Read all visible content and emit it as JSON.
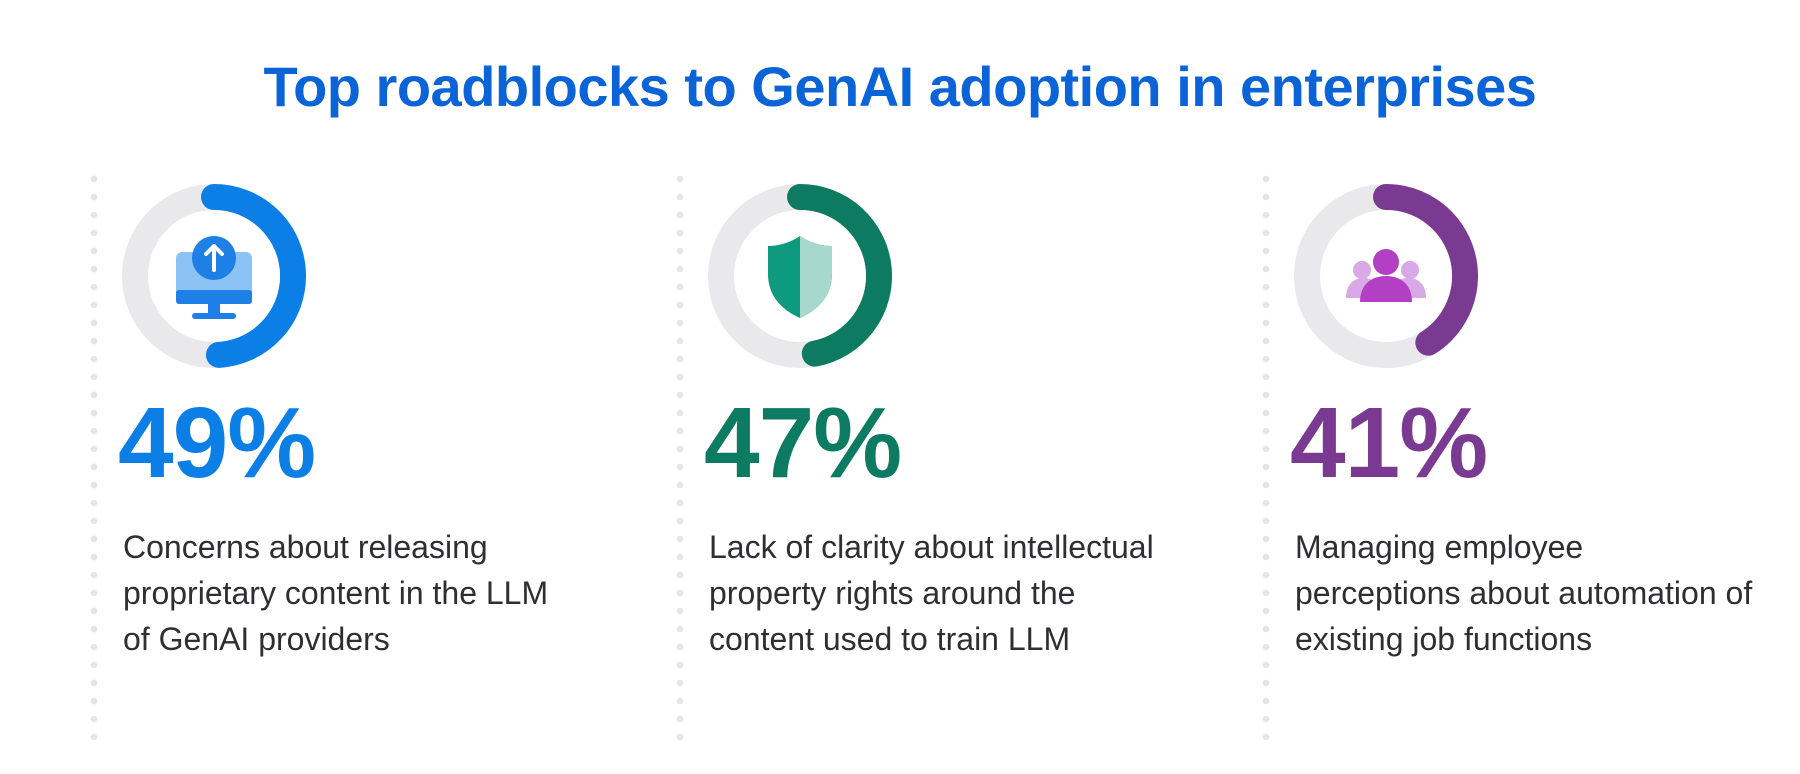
{
  "title": "Top roadblocks to GenAI adoption in enterprises",
  "colors": {
    "title": "#0b63d8",
    "track": "#e9e9ec",
    "gauge_inner": "#ffffff"
  },
  "chart_data": {
    "type": "gauge",
    "title": "Top roadblocks to GenAI adoption in enterprises",
    "unit": "%",
    "max": 100,
    "items": [
      {
        "value": 49,
        "label": "49%",
        "description": "Concerns about releasing proprietary content in the LLM of GenAI providers",
        "color": "#0b7fe6",
        "icon": "computer-upload-icon"
      },
      {
        "value": 47,
        "label": "47%",
        "description": "Lack of clarity about intellectual property rights around the content used to train LLM",
        "color": "#0d7a62",
        "icon": "shield-icon"
      },
      {
        "value": 41,
        "label": "41%",
        "description": "Managing employee perceptions about automation of existing job functions",
        "color": "#7b3a92",
        "icon": "people-group-icon"
      }
    ]
  }
}
